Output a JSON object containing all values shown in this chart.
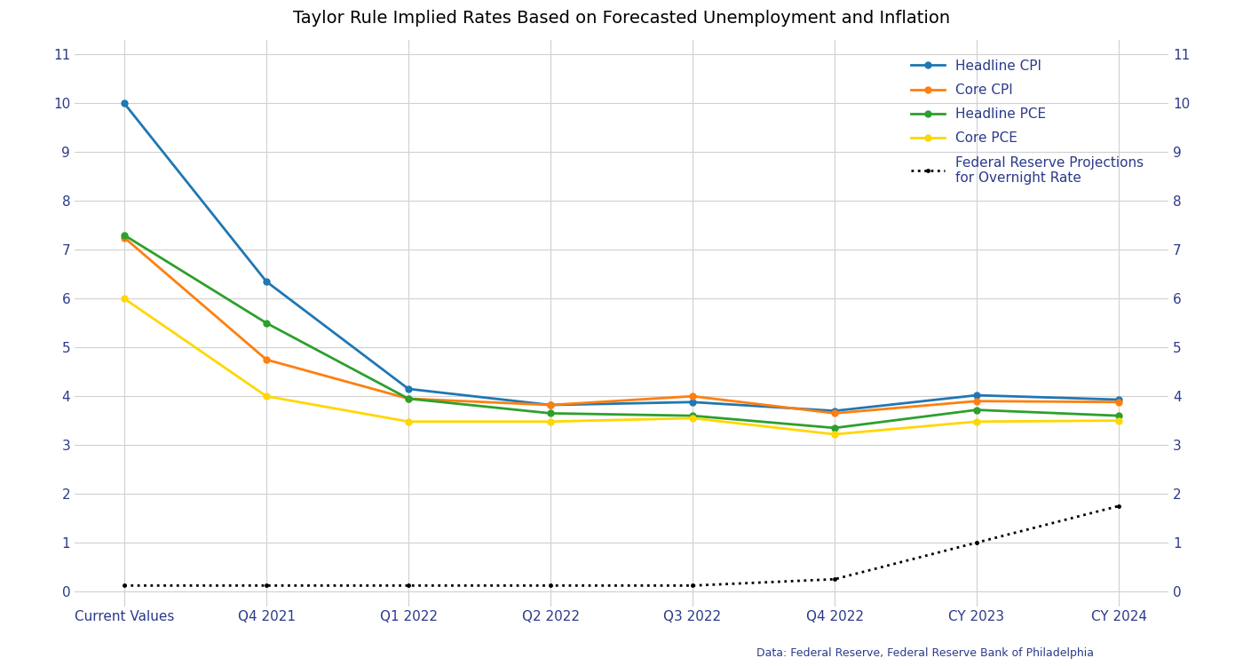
{
  "title": "Taylor Rule Implied Rates Based on Forecasted Unemployment and Inflation",
  "categories": [
    "Current Values",
    "Q4 2021",
    "Q1 2022",
    "Q2 2022",
    "Q3 2022",
    "Q4 2022",
    "CY 2023",
    "CY 2024"
  ],
  "series": {
    "Headline CPI": {
      "values": [
        10.0,
        6.35,
        4.15,
        3.82,
        3.88,
        3.7,
        4.02,
        3.93
      ],
      "color": "#1f77b4",
      "marker": "o",
      "linestyle": "-",
      "linewidth": 2.0
    },
    "Core CPI": {
      "values": [
        7.25,
        4.75,
        3.95,
        3.82,
        4.0,
        3.65,
        3.9,
        3.88
      ],
      "color": "#ff7f0e",
      "marker": "o",
      "linestyle": "-",
      "linewidth": 2.0
    },
    "Headline PCE": {
      "values": [
        7.3,
        5.5,
        3.95,
        3.65,
        3.6,
        3.35,
        3.72,
        3.6
      ],
      "color": "#2ca02c",
      "marker": "o",
      "linestyle": "-",
      "linewidth": 2.0
    },
    "Core PCE": {
      "values": [
        6.0,
        4.0,
        3.48,
        3.48,
        3.55,
        3.22,
        3.48,
        3.5
      ],
      "color": "#ffd700",
      "marker": "o",
      "linestyle": "-",
      "linewidth": 2.0
    }
  },
  "fed_proj": {
    "label": "Federal Reserve Projections\nfor Overnight Rate",
    "values": [
      0.12,
      0.12,
      0.12,
      0.12,
      0.12,
      0.25,
      1.0,
      1.75
    ],
    "color": "black",
    "linestyle": ":",
    "linewidth": 2.0,
    "marker": "."
  },
  "ylim": [
    -0.3,
    11.3
  ],
  "yticks": [
    0,
    1,
    2,
    3,
    4,
    5,
    6,
    7,
    8,
    9,
    10,
    11
  ],
  "background_color": "#ffffff",
  "grid_color": "#d0d0d0",
  "title_fontsize": 14,
  "tick_fontsize": 11,
  "tick_color": "#2b3a8a",
  "legend_fontsize": 11,
  "source_text": "Data: Federal Reserve, Federal Reserve Bank of Philadelphia",
  "source_color": "#2b3a8a",
  "source_fontsize": 9
}
